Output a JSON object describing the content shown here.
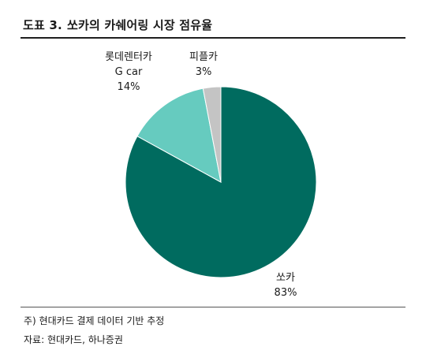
{
  "figure": {
    "number": "도표 3.",
    "title": "쏘카의 카쉐어링 시장 점유율"
  },
  "chart_data": {
    "type": "pie",
    "title": "쏘카의 카쉐어링 시장 점유율",
    "slices": [
      {
        "label": "쏘카",
        "value": 83,
        "value_label": "83%",
        "color": "#006b5f"
      },
      {
        "label": "롯데렌터카\nG car",
        "value": 14,
        "value_label": "14%",
        "color": "#66cbbf"
      },
      {
        "label": "피플카",
        "value": 3,
        "value_label": "3%",
        "color": "#c4c4c4"
      }
    ],
    "legend": "none"
  },
  "notes": {
    "note": "주) 현대카드 결제 데이터 기반 추정",
    "source": "자료: 현대카드, 하나증권"
  }
}
